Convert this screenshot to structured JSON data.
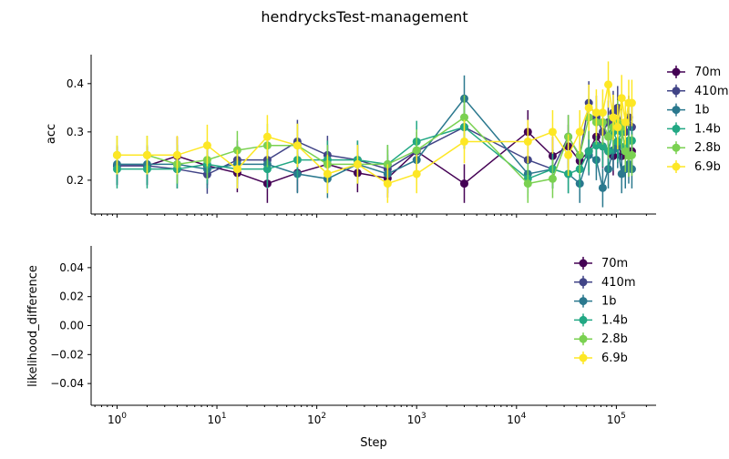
{
  "chart_data": [
    {
      "type": "line",
      "title": "hendrycksTest-management",
      "ylabel": "acc",
      "xlabel": "",
      "xscale": "log",
      "xlim": [
        0.55,
        250000
      ],
      "ylim": [
        0.13,
        0.46
      ],
      "yticks": [
        0.2,
        0.3,
        0.4
      ],
      "legend_position": "outside-right",
      "series": [
        {
          "name": "70m",
          "color": "#440154",
          "x": [
            1,
            2,
            4,
            8,
            16,
            32,
            64,
            128,
            256,
            512,
            1000,
            3000,
            13000,
            23000,
            33000,
            43000,
            53000,
            63000,
            73000,
            83000,
            93000,
            103000,
            113000,
            123000,
            133000,
            143000
          ],
          "y": [
            0.23,
            0.23,
            0.25,
            0.23,
            0.215,
            0.193,
            0.215,
            0.233,
            0.215,
            0.204,
            0.26,
            0.193,
            0.3,
            0.25,
            0.27,
            0.24,
            0.26,
            0.29,
            0.27,
            0.26,
            0.25,
            0.28,
            0.25,
            0.27,
            0.26,
            0.26
          ],
          "err": [
            0.04,
            0.04,
            0.04,
            0.04,
            0.04,
            0.04,
            0.04,
            0.04,
            0.04,
            0.04,
            0.04,
            0.04,
            0.045,
            0.04,
            0.045,
            0.04,
            0.04,
            0.045,
            0.045,
            0.04,
            0.04,
            0.045,
            0.04,
            0.045,
            0.04,
            0.04
          ]
        },
        {
          "name": "410m",
          "color": "#414487",
          "x": [
            1,
            2,
            4,
            8,
            16,
            32,
            64,
            128,
            256,
            512,
            1000,
            3000,
            13000,
            23000,
            33000,
            43000,
            53000,
            63000,
            73000,
            83000,
            93000,
            103000,
            113000,
            123000,
            133000,
            143000
          ],
          "y": [
            0.23,
            0.23,
            0.223,
            0.212,
            0.242,
            0.242,
            0.28,
            0.252,
            0.242,
            0.223,
            0.26,
            0.31,
            0.242,
            0.223,
            0.29,
            0.25,
            0.36,
            0.33,
            0.3,
            0.32,
            0.34,
            0.35,
            0.31,
            0.3,
            0.33,
            0.31
          ],
          "err": [
            0.04,
            0.04,
            0.04,
            0.04,
            0.04,
            0.04,
            0.045,
            0.04,
            0.04,
            0.04,
            0.04,
            0.045,
            0.04,
            0.04,
            0.045,
            0.04,
            0.045,
            0.045,
            0.045,
            0.045,
            0.045,
            0.045,
            0.045,
            0.045,
            0.045,
            0.045
          ]
        },
        {
          "name": "1b",
          "color": "#2a788e",
          "x": [
            1,
            2,
            4,
            8,
            16,
            32,
            64,
            128,
            256,
            512,
            1000,
            3000,
            13000,
            23000,
            33000,
            43000,
            53000,
            63000,
            73000,
            83000,
            93000,
            103000,
            113000,
            123000,
            133000,
            143000
          ],
          "y": [
            0.233,
            0.233,
            0.233,
            0.223,
            0.233,
            0.233,
            0.213,
            0.203,
            0.233,
            0.213,
            0.242,
            0.369,
            0.213,
            0.223,
            0.213,
            0.193,
            0.252,
            0.242,
            0.184,
            0.223,
            0.262,
            0.27,
            0.213,
            0.223,
            0.233,
            0.223
          ],
          "err": [
            0.04,
            0.04,
            0.04,
            0.04,
            0.04,
            0.04,
            0.04,
            0.04,
            0.04,
            0.04,
            0.04,
            0.048,
            0.04,
            0.04,
            0.04,
            0.04,
            0.042,
            0.042,
            0.04,
            0.04,
            0.042,
            0.045,
            0.04,
            0.04,
            0.04,
            0.04
          ]
        },
        {
          "name": "1.4b",
          "color": "#22a884",
          "x": [
            1,
            2,
            4,
            8,
            16,
            32,
            64,
            128,
            256,
            512,
            1000,
            3000,
            13000,
            23000,
            33000,
            43000,
            53000,
            63000,
            73000,
            83000,
            93000,
            103000,
            113000,
            123000,
            133000,
            143000
          ],
          "y": [
            0.223,
            0.223,
            0.223,
            0.233,
            0.223,
            0.223,
            0.242,
            0.242,
            0.242,
            0.233,
            0.28,
            0.31,
            0.203,
            0.223,
            0.213,
            0.223,
            0.26,
            0.272,
            0.27,
            0.26,
            0.3,
            0.28,
            0.3,
            0.27,
            0.282,
            0.282
          ],
          "err": [
            0.04,
            0.04,
            0.04,
            0.04,
            0.04,
            0.04,
            0.04,
            0.04,
            0.04,
            0.04,
            0.043,
            0.045,
            0.04,
            0.04,
            0.04,
            0.04,
            0.043,
            0.043,
            0.043,
            0.043,
            0.045,
            0.043,
            0.045,
            0.043,
            0.043,
            0.043
          ]
        },
        {
          "name": "2.8b",
          "color": "#7ad151",
          "x": [
            1,
            2,
            4,
            8,
            16,
            32,
            64,
            128,
            256,
            512,
            1000,
            3000,
            13000,
            23000,
            33000,
            43000,
            53000,
            63000,
            73000,
            83000,
            93000,
            103000,
            113000,
            123000,
            133000,
            143000
          ],
          "y": [
            0.252,
            0.252,
            0.233,
            0.242,
            0.262,
            0.272,
            0.272,
            0.233,
            0.233,
            0.233,
            0.262,
            0.33,
            0.193,
            0.203,
            0.29,
            0.252,
            0.33,
            0.32,
            0.32,
            0.29,
            0.31,
            0.32,
            0.31,
            0.26,
            0.25,
            0.252
          ],
          "err": [
            0.04,
            0.04,
            0.04,
            0.04,
            0.04,
            0.045,
            0.045,
            0.04,
            0.04,
            0.04,
            0.043,
            0.046,
            0.04,
            0.04,
            0.045,
            0.04,
            0.046,
            0.046,
            0.046,
            0.045,
            0.045,
            0.046,
            0.045,
            0.043,
            0.043,
            0.043
          ]
        },
        {
          "name": "6.9b",
          "color": "#fde725",
          "x": [
            1,
            2,
            4,
            8,
            16,
            32,
            64,
            128,
            256,
            512,
            1000,
            3000,
            13000,
            23000,
            33000,
            43000,
            53000,
            63000,
            73000,
            83000,
            93000,
            103000,
            113000,
            123000,
            133000,
            143000
          ],
          "y": [
            0.252,
            0.252,
            0.252,
            0.272,
            0.223,
            0.29,
            0.272,
            0.213,
            0.233,
            0.193,
            0.213,
            0.28,
            0.28,
            0.3,
            0.252,
            0.3,
            0.35,
            0.34,
            0.34,
            0.398,
            0.33,
            0.31,
            0.37,
            0.32,
            0.36,
            0.36
          ],
          "err": [
            0.04,
            0.04,
            0.04,
            0.043,
            0.04,
            0.045,
            0.045,
            0.04,
            0.04,
            0.04,
            0.04,
            0.045,
            0.045,
            0.045,
            0.043,
            0.045,
            0.048,
            0.048,
            0.048,
            0.048,
            0.047,
            0.046,
            0.048,
            0.046,
            0.048,
            0.048
          ]
        }
      ]
    },
    {
      "type": "line",
      "title": "",
      "xlabel": "Step",
      "ylabel": "likelihood_difference",
      "xscale": "log",
      "xlim": [
        0.55,
        250000
      ],
      "ylim": [
        -0.055,
        0.055
      ],
      "yticks": [
        -0.04,
        -0.02,
        0.0,
        0.02,
        0.04
      ],
      "ytick_labels": [
        "−0.04",
        "−0.02",
        "0.00",
        "0.02",
        "0.04"
      ],
      "xtick_bases": [
        "10",
        "10",
        "10",
        "10",
        "10",
        "10"
      ],
      "xtick_exponents": [
        "0",
        "1",
        "2",
        "3",
        "4",
        "5"
      ],
      "xtick_values": [
        1,
        10,
        100,
        1000,
        10000,
        100000
      ],
      "legend_position": "upper-right",
      "series": [
        {
          "name": "70m",
          "color": "#440154",
          "x": [],
          "y": []
        },
        {
          "name": "410m",
          "color": "#414487",
          "x": [],
          "y": []
        },
        {
          "name": "1b",
          "color": "#2a788e",
          "x": [],
          "y": []
        },
        {
          "name": "1.4b",
          "color": "#22a884",
          "x": [],
          "y": []
        },
        {
          "name": "2.8b",
          "color": "#7ad151",
          "x": [],
          "y": []
        },
        {
          "name": "6.9b",
          "color": "#fde725",
          "x": [],
          "y": []
        }
      ]
    }
  ]
}
